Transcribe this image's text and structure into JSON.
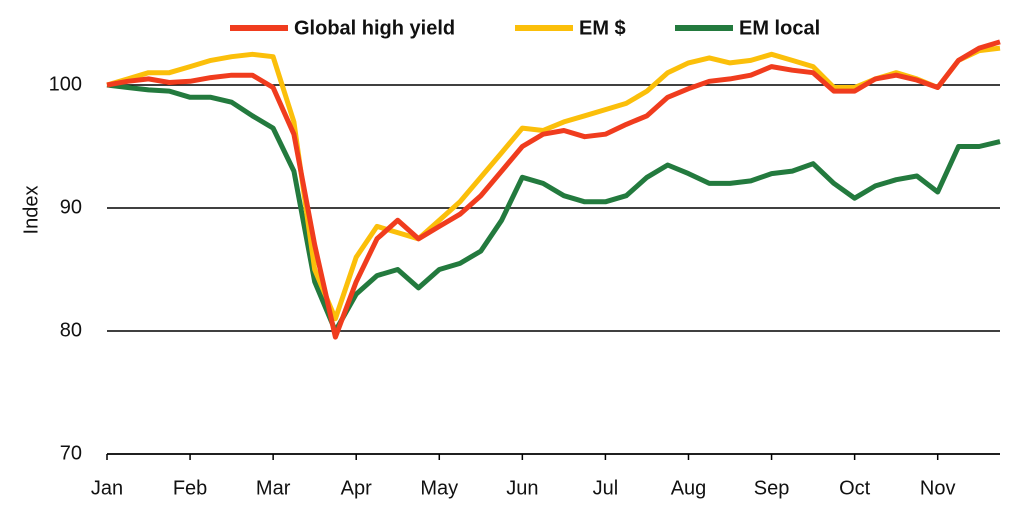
{
  "chart_data": {
    "type": "line",
    "y_label": "Index",
    "categories": [
      "Jan",
      null,
      null,
      null,
      "Feb",
      null,
      null,
      null,
      "Mar",
      null,
      null,
      null,
      "Apr",
      null,
      null,
      null,
      "May",
      null,
      null,
      null,
      "Jun",
      null,
      null,
      null,
      "Jul",
      null,
      null,
      null,
      "Aug",
      null,
      null,
      null,
      "Sep",
      null,
      null,
      null,
      "Oct",
      null,
      null,
      null,
      "Nov",
      null,
      null,
      null
    ],
    "series": [
      {
        "name": "Global high yield",
        "color": "#f03c1e",
        "values": [
          100,
          100.3,
          100.5,
          100.2,
          100.3,
          100.6,
          100.8,
          100.8,
          99.8,
          96,
          87,
          79.5,
          84,
          87.5,
          89,
          87.5,
          88.5,
          89.5,
          91,
          93,
          95,
          96,
          96.3,
          95.8,
          96,
          96.8,
          97.5,
          99,
          99.7,
          100.3,
          100.5,
          100.8,
          101.5,
          101.2,
          101,
          99.5,
          99.5,
          100.5,
          100.8,
          100.4,
          99.8,
          102,
          103,
          103.5
        ]
      },
      {
        "name": "EM $",
        "color": "#fbbf0a",
        "values": [
          100,
          100.5,
          101,
          101,
          101.5,
          102,
          102.3,
          102.5,
          102.3,
          97,
          85,
          81,
          86,
          88.5,
          88,
          87.5,
          89,
          90.5,
          92.5,
          94.5,
          96.5,
          96.3,
          97,
          97.5,
          98,
          98.5,
          99.5,
          101,
          101.8,
          102.2,
          101.8,
          102,
          102.5,
          102,
          101.5,
          99.8,
          99.8,
          100.5,
          101,
          100.5,
          99.8,
          102,
          102.8,
          103
        ]
      },
      {
        "name": "EM local",
        "color": "#237a3e",
        "values": [
          100,
          99.8,
          99.6,
          99.5,
          99,
          99,
          98.6,
          97.5,
          96.5,
          93,
          84,
          80,
          83,
          84.5,
          85,
          83.5,
          85,
          85.5,
          86.5,
          89,
          92.5,
          92,
          91,
          90.5,
          90.5,
          91,
          92.5,
          93.5,
          92.8,
          92,
          92,
          92.2,
          92.8,
          93,
          93.6,
          92,
          90.8,
          91.8,
          92.3,
          92.6,
          91.3,
          95,
          95,
          95.4
        ]
      }
    ],
    "ylim": [
      70,
      105
    ],
    "yticks": [
      70,
      80,
      90,
      100
    ],
    "grid": true,
    "legend": "top"
  }
}
